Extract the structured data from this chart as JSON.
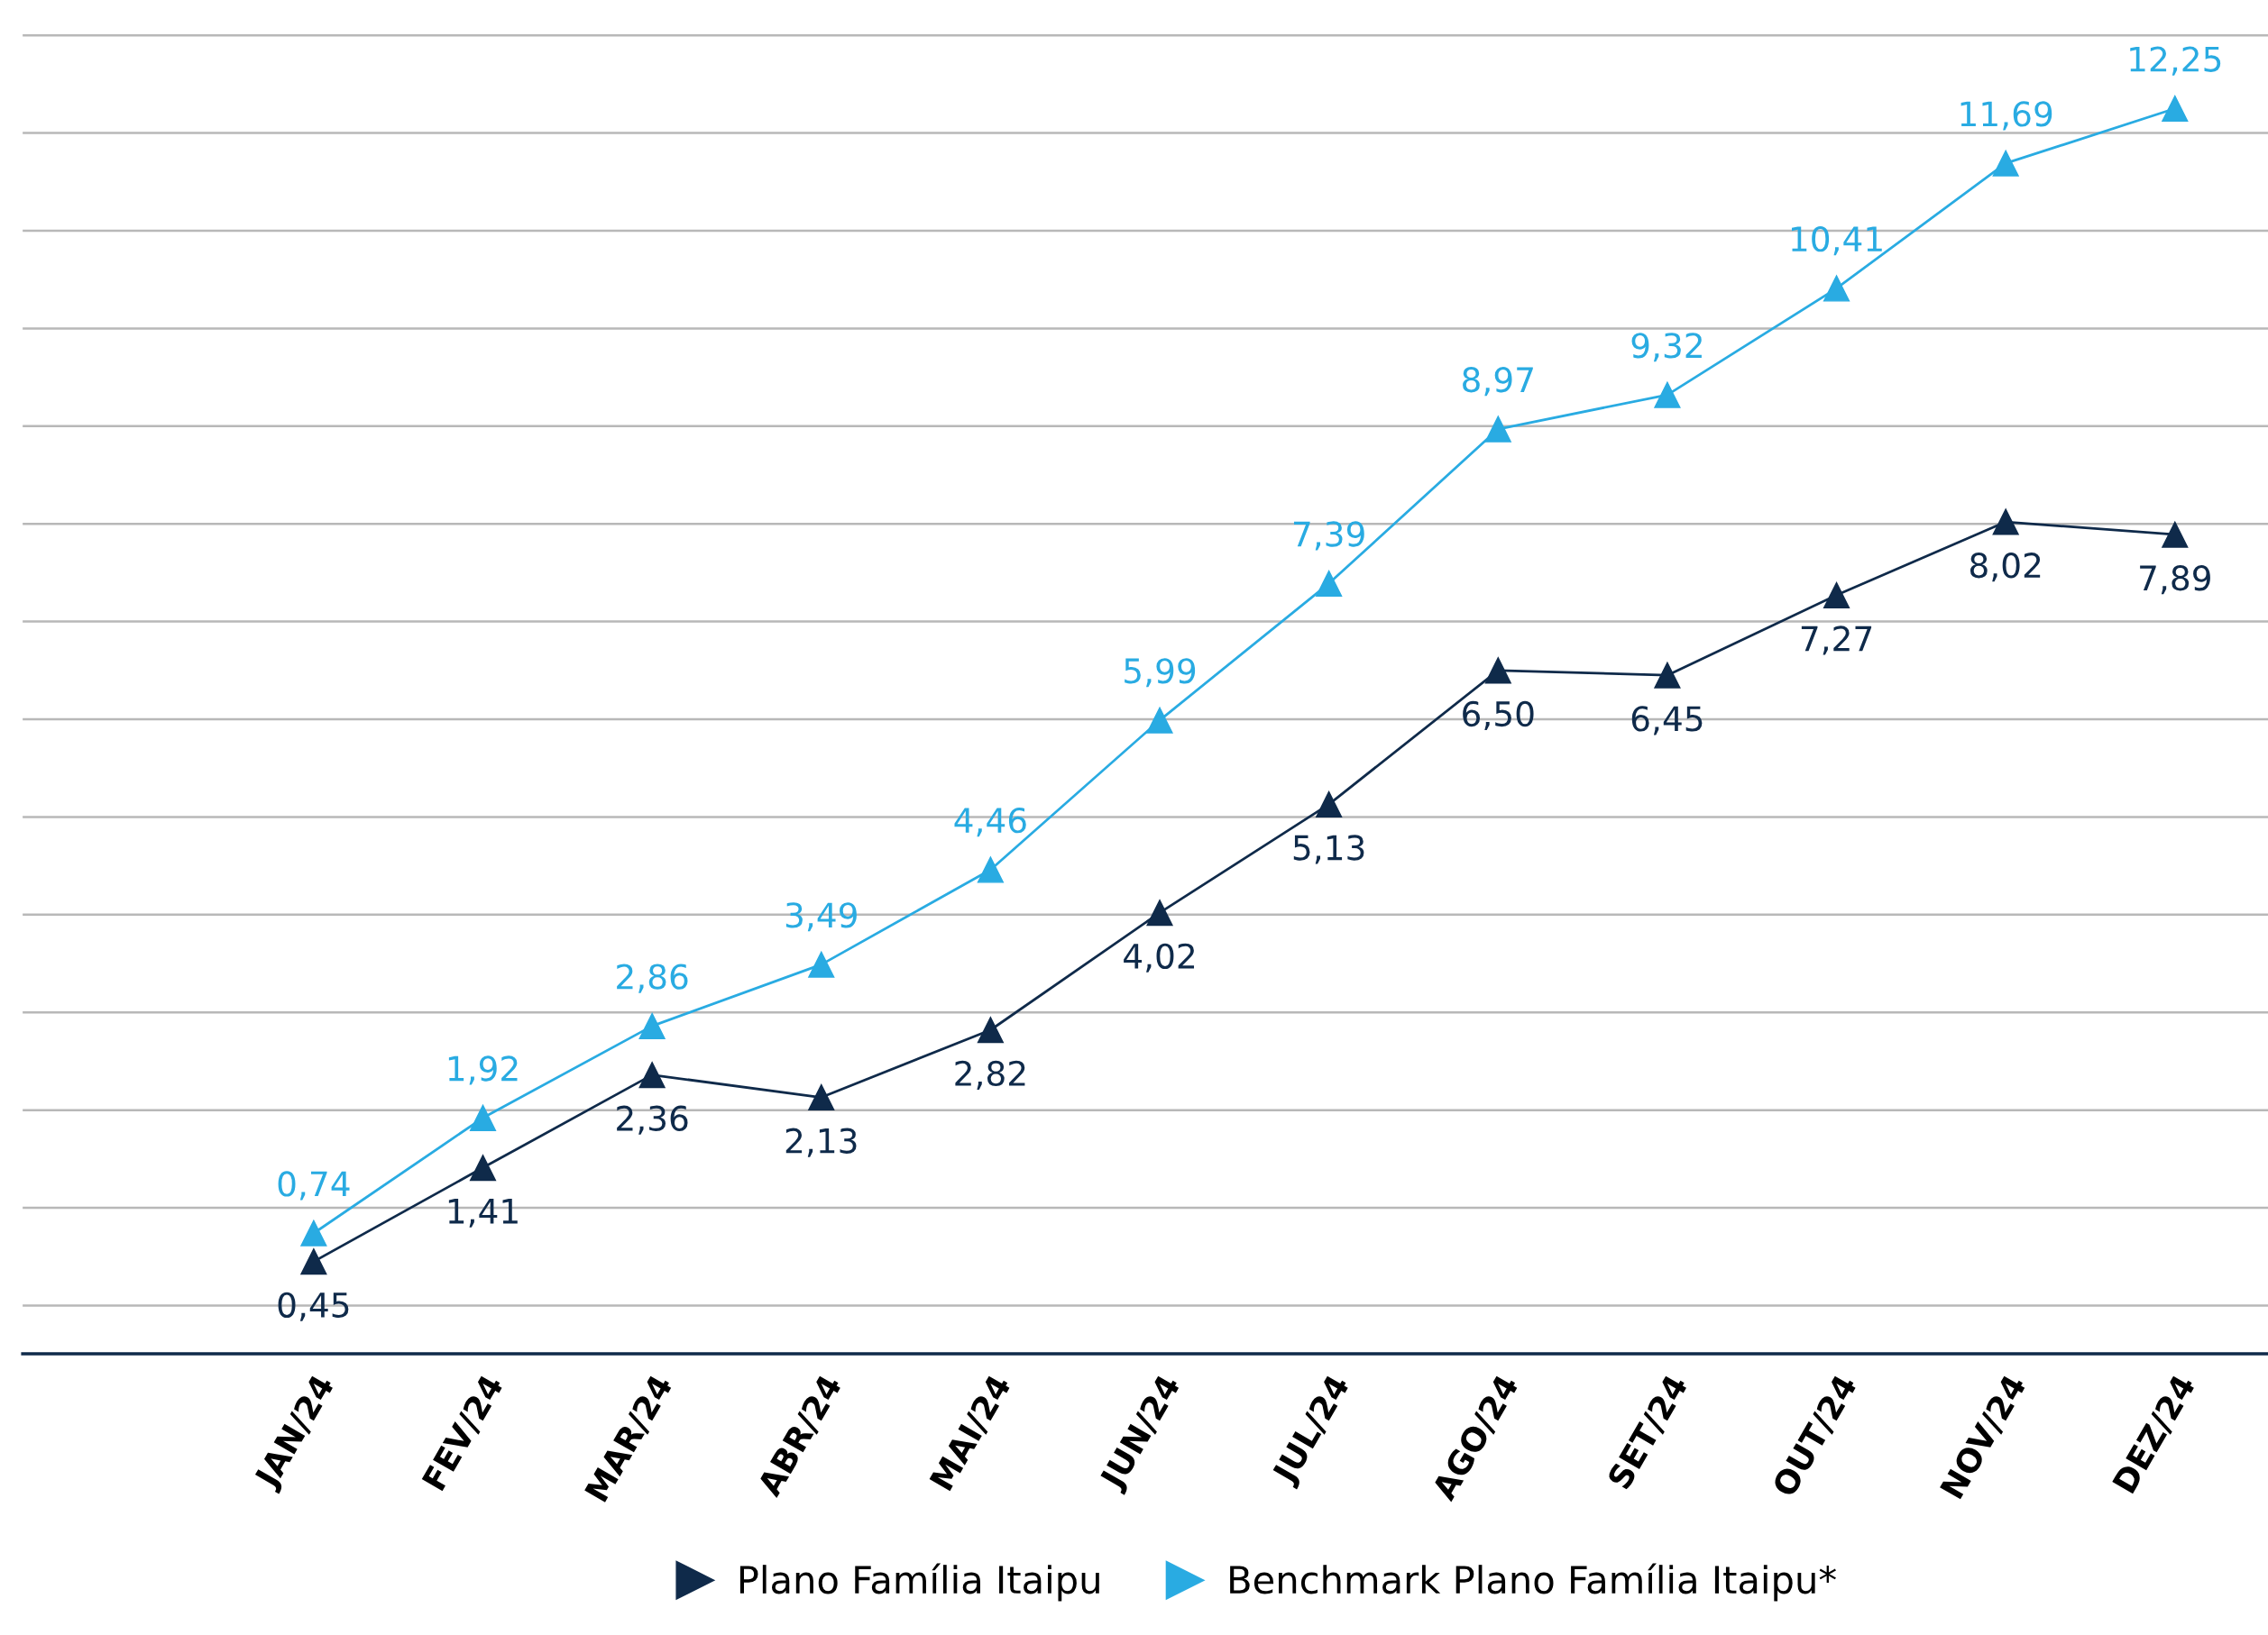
{
  "chart_data": {
    "type": "line",
    "categories": [
      "JAN/24",
      "FEV/24",
      "MAR/24",
      "ABR/24",
      "MAI/24",
      "JUN/24",
      "JUL/24",
      "AGO/24",
      "SET/24",
      "OUT/24",
      "NOV/24",
      "DEZ/24"
    ],
    "series": [
      {
        "name": "Plano Família Itaipu",
        "color": "#0f2a4a",
        "values": [
          0.45,
          1.41,
          2.36,
          2.13,
          2.82,
          4.02,
          5.13,
          6.5,
          6.45,
          7.27,
          8.02,
          7.89
        ],
        "value_labels": [
          "0,45",
          "1,41",
          "2,36",
          "2,13",
          "2,82",
          "4,02",
          "5,13",
          "6,50",
          "6,45",
          "7,27",
          "8,02",
          "7,89"
        ]
      },
      {
        "name": "Benchmark Plano Família Itaipu*",
        "color": "#29abe2",
        "values": [
          0.74,
          1.92,
          2.86,
          3.49,
          4.46,
          5.99,
          7.39,
          8.97,
          9.32,
          10.41,
          11.69,
          12.25
        ],
        "value_labels": [
          "0,74",
          "1,92",
          "2,86",
          "3,49",
          "4,46",
          "5,99",
          "7,39",
          "8,97",
          "9,32",
          "10,41",
          "11,69",
          "12,25"
        ]
      }
    ],
    "tick_labels": "x",
    "grid": "y",
    "legend": "bottom",
    "marker": "triangle"
  }
}
